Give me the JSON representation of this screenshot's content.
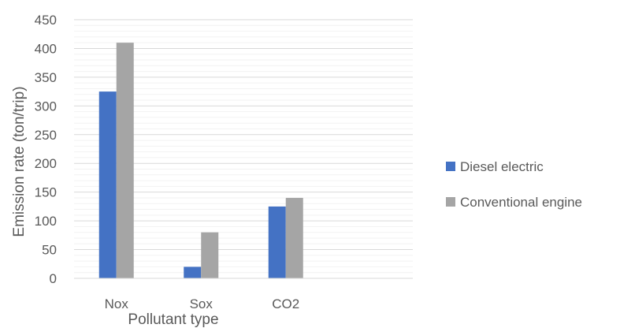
{
  "chart_data": {
    "type": "bar",
    "title": "",
    "xlabel": "Pollutant type",
    "ylabel": "Emission rate (ton/trip)",
    "categories": [
      "Nox",
      "Sox",
      "CO2",
      ""
    ],
    "series": [
      {
        "name": "Diesel electric",
        "values": [
          325,
          20,
          125,
          null
        ],
        "color": "#4472C4"
      },
      {
        "name": "Conventional engine",
        "values": [
          410,
          80,
          140,
          null
        ],
        "color": "#A5A5A5"
      }
    ],
    "ylim": [
      0,
      450
    ],
    "yticks": [
      0,
      50,
      100,
      150,
      200,
      250,
      300,
      350,
      400,
      450
    ],
    "minor_grid_step": 10,
    "grid": true,
    "legend_position": "right"
  }
}
